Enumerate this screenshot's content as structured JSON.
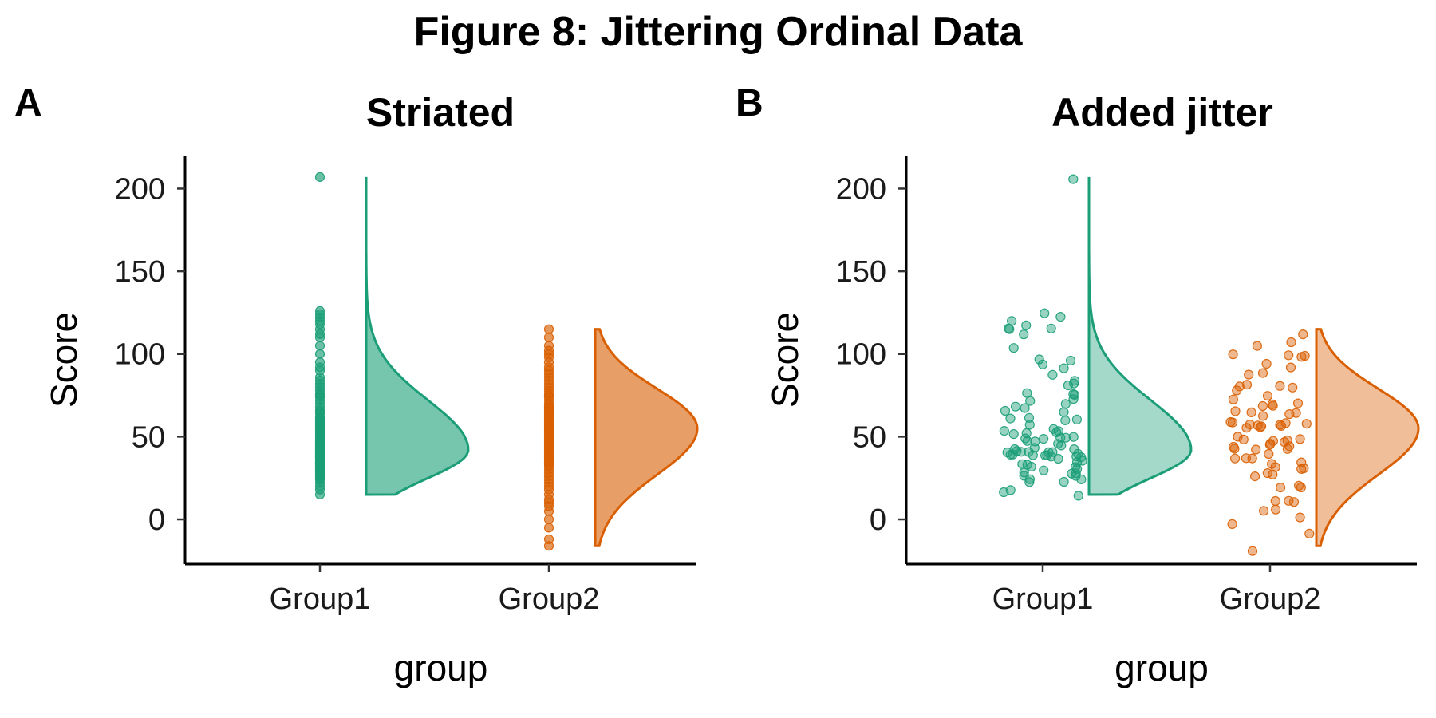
{
  "figure_title": "Figure 8: Jittering Ordinal Data",
  "colors": {
    "group1": "#1b9e77",
    "group2": "#d95f02"
  },
  "chart_data": [
    {
      "type": "scatter",
      "panel_tag": "A",
      "title": "Striated",
      "xlabel": "group",
      "ylabel": "Score",
      "categories": [
        "Group1",
        "Group2"
      ],
      "yticks": [
        0,
        50,
        100,
        150,
        200
      ],
      "ylim": [
        -27,
        220
      ],
      "jitter": false,
      "cloud_alpha": 0.6,
      "point_alpha": 0.65,
      "series": [
        {
          "category": "Group1",
          "min": 15,
          "max": 207,
          "mode": 42,
          "density_left_sd": 17,
          "density_right_sd": 30,
          "values": [
            15,
            18,
            20,
            22,
            24,
            25,
            26,
            27,
            28,
            29,
            30,
            30,
            31,
            32,
            32,
            33,
            34,
            34,
            35,
            35,
            36,
            36,
            37,
            37,
            38,
            38,
            39,
            39,
            40,
            40,
            41,
            41,
            42,
            42,
            43,
            43,
            44,
            44,
            45,
            45,
            46,
            46,
            47,
            48,
            48,
            49,
            50,
            51,
            52,
            53,
            54,
            55,
            56,
            57,
            58,
            59,
            60,
            61,
            62,
            64,
            65,
            66,
            68,
            70,
            72,
            74,
            75,
            76,
            78,
            80,
            82,
            84,
            86,
            90,
            92,
            95,
            100,
            105,
            110,
            112,
            115,
            118,
            120,
            122,
            124,
            126,
            207
          ]
        },
        {
          "category": "Group2",
          "min": -16,
          "max": 115,
          "mode": 55,
          "density_left_sd": 28,
          "density_right_sd": 24,
          "values": [
            -16,
            -12,
            -5,
            0,
            5,
            8,
            10,
            12,
            15,
            18,
            20,
            22,
            24,
            26,
            28,
            30,
            32,
            33,
            34,
            35,
            36,
            37,
            38,
            39,
            40,
            41,
            42,
            43,
            44,
            45,
            46,
            47,
            48,
            49,
            50,
            51,
            52,
            53,
            54,
            55,
            55,
            56,
            57,
            58,
            59,
            60,
            61,
            62,
            63,
            64,
            65,
            66,
            67,
            68,
            69,
            70,
            72,
            74,
            75,
            76,
            78,
            80,
            82,
            84,
            86,
            88,
            90,
            92,
            95,
            98,
            100,
            102,
            105,
            110,
            115
          ]
        }
      ]
    },
    {
      "type": "scatter",
      "panel_tag": "B",
      "title": "Added jitter",
      "xlabel": "group",
      "ylabel": "Score",
      "categories": [
        "Group1",
        "Group2"
      ],
      "yticks": [
        0,
        50,
        100,
        150,
        200
      ],
      "ylim": [
        -27,
        220
      ],
      "jitter": true,
      "cloud_alpha": 0.4,
      "point_alpha": 0.45,
      "series": [
        {
          "category": "Group1",
          "min": 15,
          "max": 207,
          "mode": 42,
          "density_left_sd": 17,
          "density_right_sd": 30,
          "values": [
            15,
            18,
            20,
            22,
            24,
            25,
            26,
            27,
            28,
            29,
            30,
            30,
            31,
            32,
            32,
            33,
            34,
            34,
            35,
            35,
            36,
            36,
            37,
            37,
            38,
            38,
            39,
            39,
            40,
            40,
            41,
            41,
            42,
            42,
            43,
            43,
            44,
            44,
            45,
            45,
            46,
            46,
            47,
            48,
            48,
            49,
            50,
            51,
            52,
            53,
            54,
            55,
            56,
            57,
            58,
            59,
            60,
            61,
            62,
            64,
            65,
            66,
            68,
            70,
            72,
            74,
            75,
            76,
            78,
            80,
            82,
            84,
            86,
            90,
            92,
            95,
            100,
            105,
            110,
            112,
            115,
            118,
            120,
            122,
            124,
            126,
            207
          ]
        },
        {
          "category": "Group2",
          "min": -16,
          "max": 115,
          "mode": 55,
          "density_left_sd": 28,
          "density_right_sd": 24,
          "values": [
            -16,
            -12,
            -5,
            0,
            5,
            8,
            10,
            12,
            15,
            18,
            20,
            22,
            24,
            26,
            28,
            30,
            32,
            33,
            34,
            35,
            36,
            37,
            38,
            39,
            40,
            41,
            42,
            43,
            44,
            45,
            46,
            47,
            48,
            49,
            50,
            51,
            52,
            53,
            54,
            55,
            55,
            56,
            57,
            58,
            59,
            60,
            61,
            62,
            63,
            64,
            65,
            66,
            67,
            68,
            69,
            70,
            72,
            74,
            75,
            76,
            78,
            80,
            82,
            84,
            86,
            88,
            90,
            92,
            95,
            98,
            100,
            102,
            105,
            110,
            115
          ]
        }
      ]
    }
  ]
}
